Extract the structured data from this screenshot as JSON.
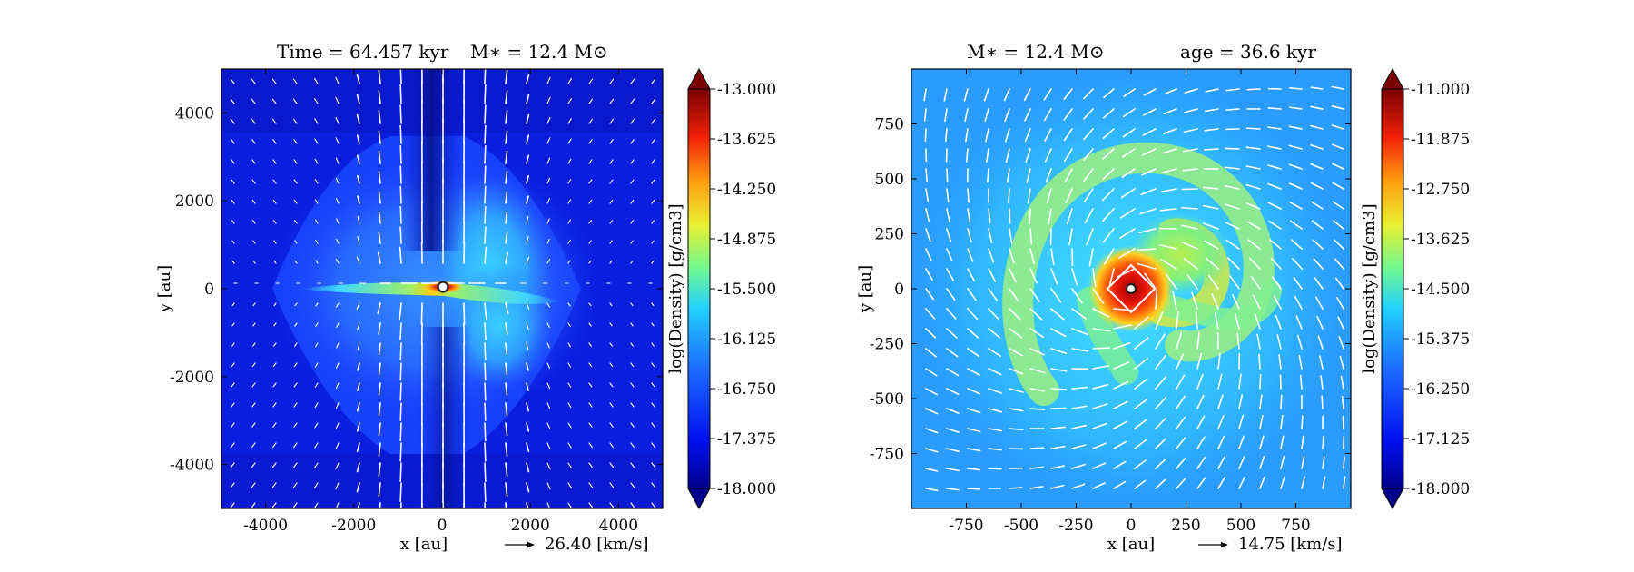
{
  "chart_data": [
    {
      "type": "heatmap",
      "title_left": "Time = 64.457 kyr",
      "title_right": "M∗ = 12.4 M⊙",
      "xlabel": "x [au]",
      "ylabel": "y [au]",
      "xlim": [
        -5000,
        5000
      ],
      "ylim": [
        -5000,
        5000
      ],
      "xticks": [
        -4000,
        -2000,
        0,
        2000,
        4000
      ],
      "yticks": [
        -4000,
        -2000,
        0,
        2000,
        4000
      ],
      "colorbar_label": "log(Density) [g/cm3]",
      "colorbar_range": [
        -18.0,
        -13.0
      ],
      "colorbar_ticks": [
        "-13.000",
        "-13.625",
        "-14.250",
        "-14.875",
        "-15.500",
        "-16.125",
        "-16.750",
        "-17.375",
        "-18.000"
      ],
      "velocity_key": "26.40 [km/s]",
      "structures": "edge-on disk along y = 0 spanning about x = -3000 to 2600 au; hourglass-shaped lower density envelope; outflow cavity with strong vertical velocity vectors near x = 0"
    },
    {
      "type": "heatmap",
      "title_left": "M∗ = 12.4 M⊙",
      "title_right": "age = 36.6 kyr",
      "xlabel": "x [au]",
      "ylabel": "y [au]",
      "xlim": [
        -1000,
        1000
      ],
      "ylim": [
        -1000,
        1000
      ],
      "xticks": [
        -750,
        -500,
        -250,
        0,
        250,
        500,
        750
      ],
      "yticks": [
        750,
        500,
        250,
        0,
        -250,
        -500,
        -750
      ],
      "colorbar_label": "log(Density) [g/cm3]",
      "colorbar_range": [
        -18.0,
        -11.0
      ],
      "colorbar_ticks": [
        "-11.000",
        "-11.875",
        "-12.750",
        "-13.625",
        "-14.500",
        "-15.375",
        "-16.250",
        "-17.125",
        "-18.000"
      ],
      "velocity_key": "14.75 [km/s]",
      "structures": "face-on disk with spiral arms; dense core at origin with white diamond outline; rotating velocity field"
    }
  ],
  "colors": {
    "deep_blue": "#0a14c8",
    "blue": "#1a3cff",
    "cyan": "#22b8ff",
    "green": "#8cf27a",
    "yellow": "#f0e020",
    "red": "#e8200a",
    "dark_red": "#8a0000"
  }
}
